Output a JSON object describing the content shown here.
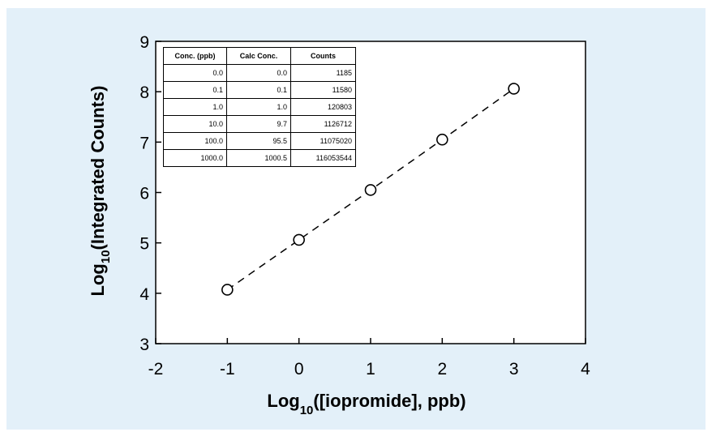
{
  "chart_data": {
    "type": "scatter",
    "xlabel": "Log",
    "xlabel_sub": "10",
    "xlabel_rest": "([iopromide], ppb)",
    "ylabel": "Log",
    "ylabel_sub": "10",
    "ylabel_rest": "(Integrated Counts)",
    "xlim": [
      -2,
      4
    ],
    "ylim": [
      3,
      9
    ],
    "xticks": [
      "-2",
      "-1",
      "0",
      "1",
      "2",
      "3",
      "4"
    ],
    "yticks": [
      "3",
      "4",
      "5",
      "6",
      "7",
      "8",
      "9"
    ],
    "series": [
      {
        "marker": "open-circle",
        "line": "dashed",
        "x": [
          -1,
          0,
          1,
          2,
          3
        ],
        "y": [
          4.07,
          5.06,
          6.05,
          7.05,
          8.06
        ]
      }
    ],
    "table": {
      "headers": [
        "Conc. (ppb)",
        "Calc Conc.",
        "Counts"
      ],
      "rows": [
        [
          "0.0",
          "0.0",
          "1185"
        ],
        [
          "0.1",
          "0.1",
          "11580"
        ],
        [
          "1.0",
          "1.0",
          "120803"
        ],
        [
          "10.0",
          "9.7",
          "1126712"
        ],
        [
          "100.0",
          "95.5",
          "11075020"
        ],
        [
          "1000.0",
          "1000.5",
          "116053544"
        ]
      ]
    },
    "grid": false,
    "colors": {
      "panel_background": "#e3f0f9",
      "plot_background": "#ffffff",
      "ink": "#000000"
    }
  }
}
